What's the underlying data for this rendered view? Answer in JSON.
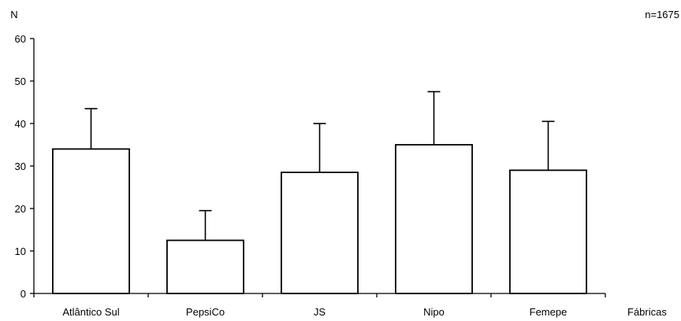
{
  "chart_data": {
    "type": "bar",
    "title": "",
    "ylabel": "N",
    "xlabel": "Fábricas",
    "annotation": "n=1675",
    "categories": [
      "Atlântico Sul",
      "PepsiCo",
      "JS",
      "Nipo",
      "Femepe"
    ],
    "values": [
      34,
      12.5,
      28.5,
      35,
      29
    ],
    "error_upper": [
      43.5,
      19.5,
      40,
      47.5,
      40.5
    ],
    "ylim": [
      0,
      60
    ],
    "yticks": [
      0,
      10,
      20,
      30,
      40,
      50,
      60
    ],
    "grid": false,
    "legend": "none",
    "colors": {
      "bar_fill": "#ffffff",
      "bar_stroke": "#000000",
      "axis": "#000000"
    }
  }
}
